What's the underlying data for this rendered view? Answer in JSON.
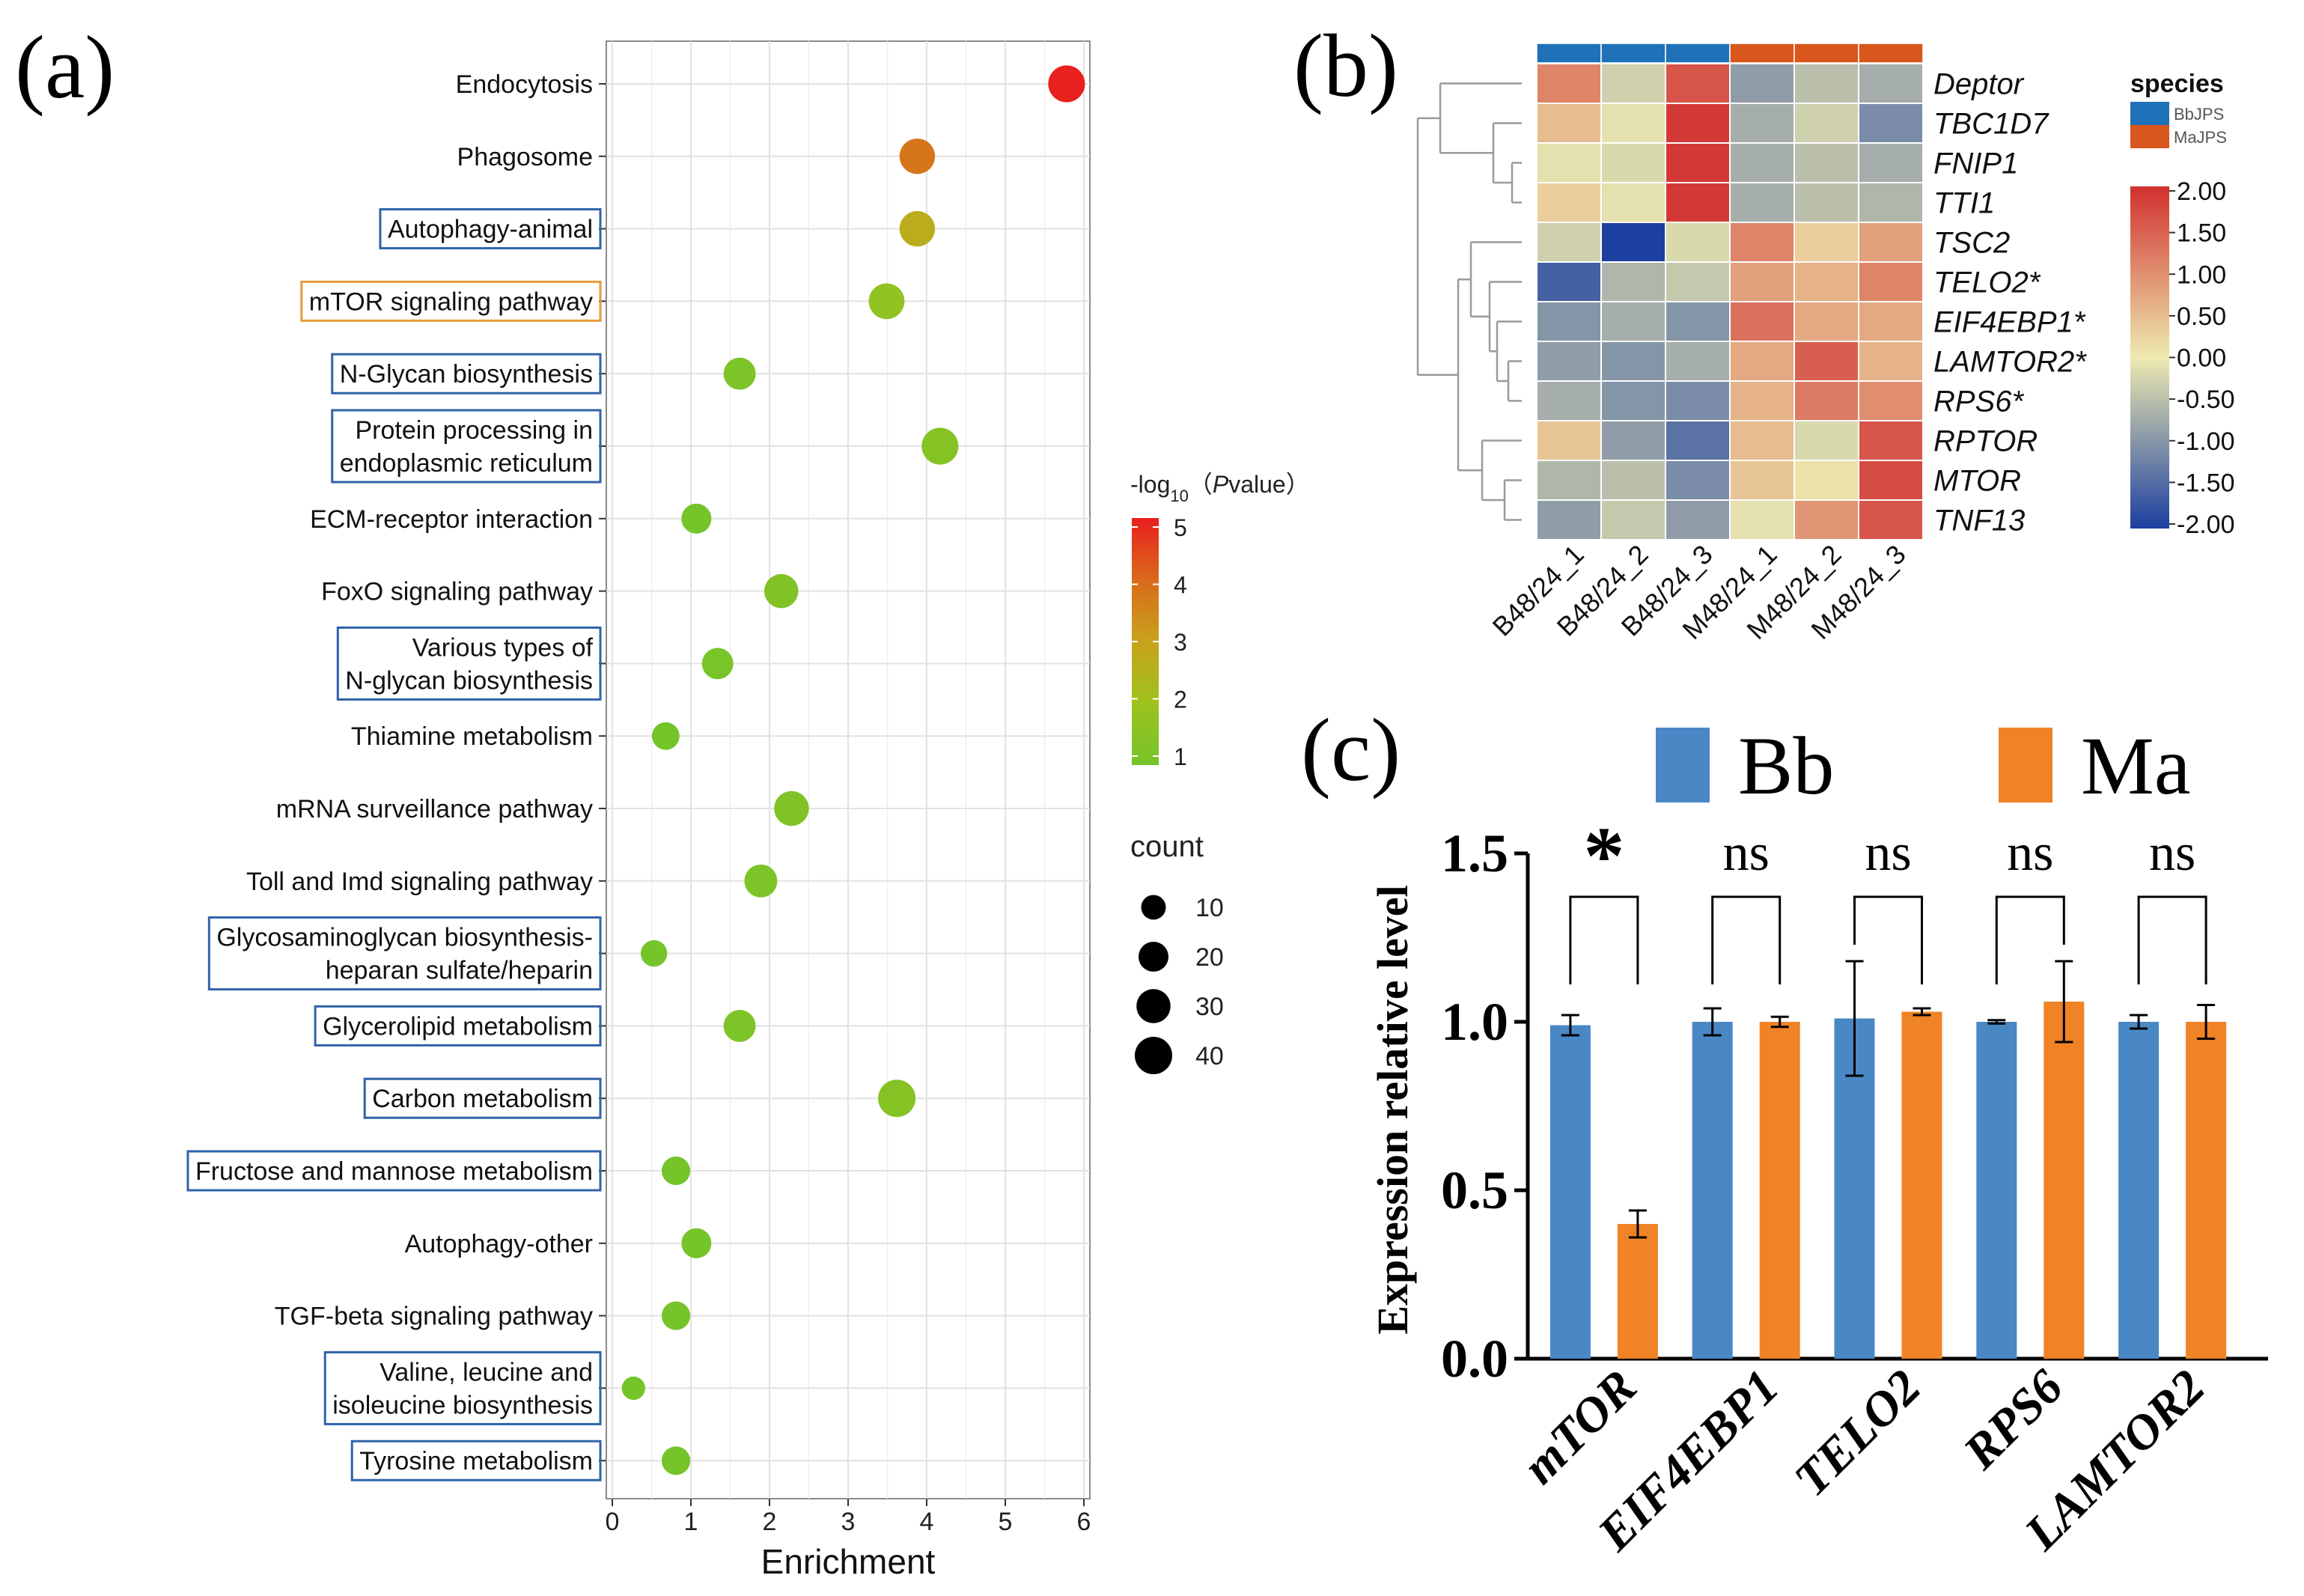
{
  "panel_labels": {
    "a": "(a)",
    "b": "(b)",
    "c": "(c)"
  },
  "chart_data": [
    {
      "type": "scatter",
      "panel": "a",
      "title": "",
      "xlabel": "Enrichment",
      "ylabel": "",
      "xlim": [
        0,
        6
      ],
      "xticks": [
        "0",
        "1",
        "2",
        "3",
        "4",
        "5",
        "6"
      ],
      "grid": true,
      "categories": [
        "Endocytosis",
        "Phagosome",
        "Autophagy-animal",
        "mTOR signaling pathway",
        "N-Glycan biosynthesis",
        "Protein processing in|endoplasmic reticulum",
        "ECM-receptor interaction",
        "FoxO signaling pathway",
        "Various types of|N-glycan biosynthesis",
        "Thiamine metabolism",
        "mRNA surveillance pathway",
        "Toll and Imd signaling pathway",
        "Glycosaminoglycan biosynthesis-|heparan sulfate/heparin",
        "Glycerolipid metabolism",
        "Carbon metabolism",
        "Fructose and mannose metabolism",
        "Autophagy-other",
        "TGF-beta signaling pathway",
        "Valine, leucine and|isoleucine biosynthesis",
        "Tyrosine metabolism"
      ],
      "boxed": [
        "none",
        "none",
        "blue",
        "orange",
        "blue",
        "blue",
        "none",
        "none",
        "blue",
        "none",
        "none",
        "none",
        "blue",
        "blue",
        "blue",
        "blue",
        "none",
        "none",
        "blue",
        "blue"
      ],
      "enrichment": [
        5.78,
        3.88,
        3.88,
        3.49,
        1.62,
        4.17,
        1.07,
        2.15,
        1.34,
        0.68,
        2.28,
        1.89,
        0.53,
        1.62,
        3.62,
        0.81,
        1.07,
        0.81,
        0.27,
        0.81
      ],
      "neg_log10_p": [
        5.0,
        3.8,
        2.7,
        1.7,
        1.2,
        1.4,
        1.0,
        1.3,
        1.1,
        1.0,
        1.3,
        1.2,
        1.0,
        1.2,
        1.4,
        1.0,
        1.0,
        1.0,
        1.0,
        1.0
      ],
      "count": [
        38,
        34,
        34,
        35,
        25,
        38,
        20,
        30,
        23,
        15,
        32,
        27,
        13,
        25,
        40,
        17,
        20,
        17,
        8,
        17
      ],
      "colorbar": {
        "title_prefix": "-log",
        "title_sub": "10",
        "title_suffix": "（",
        "title_p": "P",
        "title_end": "value）",
        "range": [
          1,
          5
        ],
        "ticks": [
          "5",
          "4",
          "3",
          "2",
          "1"
        ],
        "colors": [
          "#e8201e",
          "#d96a1a",
          "#c8a21c",
          "#9ec21e",
          "#74c42a"
        ]
      },
      "size_legend": {
        "title": "count",
        "values": [
          10,
          20,
          30,
          40
        ],
        "labels": [
          "10",
          "20",
          "30",
          "40"
        ]
      }
    },
    {
      "type": "heatmap",
      "panel": "b",
      "rows": [
        "Deptor",
        "TBC1D7",
        "FNIP1",
        "TTI1",
        "TSC2",
        "TELO2*",
        "EIF4EBP1*",
        "LAMTOR2*",
        "RPS6*",
        "RPTOR",
        "MTOR",
        "TNF13"
      ],
      "columns": [
        "B48/24_1",
        "B48/24_2",
        "B48/24_3",
        "M48/24_1",
        "M48/24_2",
        "M48/24_3"
      ],
      "column_species": [
        "BbJPS",
        "BbJPS",
        "BbJPS",
        "MaJPS",
        "MaJPS",
        "MaJPS"
      ],
      "values": [
        [
          1.1,
          -0.3,
          1.6,
          -0.9,
          -0.5,
          -0.7
        ],
        [
          0.5,
          -0.1,
          1.9,
          -0.7,
          -0.3,
          -1.1
        ],
        [
          -0.1,
          -0.2,
          1.9,
          -0.7,
          -0.5,
          -0.7
        ],
        [
          0.3,
          -0.1,
          1.9,
          -0.7,
          -0.5,
          -0.6
        ],
        [
          -0.3,
          -2.0,
          -0.2,
          1.1,
          0.3,
          0.8
        ],
        [
          -1.6,
          -0.6,
          -0.4,
          0.8,
          0.6,
          1.1
        ],
        [
          -1.0,
          -0.7,
          -1.0,
          1.3,
          0.7,
          0.7
        ],
        [
          -0.9,
          -1.0,
          -0.7,
          0.7,
          1.5,
          0.6
        ],
        [
          -0.7,
          -1.0,
          -1.1,
          0.6,
          1.2,
          1.0
        ],
        [
          0.4,
          -0.9,
          -1.4,
          0.5,
          -0.2,
          1.6
        ],
        [
          -0.6,
          -0.5,
          -1.1,
          0.4,
          0.1,
          1.7
        ],
        [
          -0.9,
          -0.4,
          -0.9,
          -0.1,
          0.9,
          1.6
        ]
      ],
      "legend": {
        "title": "species",
        "items": [
          {
            "label": "BbJPS",
            "color": "#1f72b8"
          },
          {
            "label": "MaJPS",
            "color": "#d9561c"
          }
        ]
      },
      "colorbar": {
        "range": [
          -2,
          2
        ],
        "ticks": [
          "2.00",
          "1.50",
          "1.00",
          "0.50",
          "0.00",
          "-0.50",
          "-1.00",
          "-1.50",
          "-2.00"
        ],
        "colors": [
          "#d1302f",
          "#eeeab0",
          "#1c3fa0"
        ]
      }
    },
    {
      "type": "bar",
      "panel": "c",
      "categories": [
        "mTOR",
        "EIF4EBP1",
        "TELO2",
        "RPS6",
        "LAMTOR2"
      ],
      "series": [
        {
          "name": "Bb",
          "values": [
            0.99,
            1.0,
            1.01,
            1.0,
            1.0
          ],
          "errors": [
            0.03,
            0.04,
            0.17,
            0.005,
            0.02
          ],
          "color": "#4a87c5"
        },
        {
          "name": "Ma",
          "values": [
            0.4,
            1.0,
            1.03,
            1.06,
            1.0
          ],
          "errors": [
            0.04,
            0.015,
            0.01,
            0.12,
            0.05
          ],
          "color": "#f08325"
        }
      ],
      "significance": [
        "*",
        "ns",
        "ns",
        "ns",
        "ns"
      ],
      "ylabel": "Expression relative level",
      "ylim": [
        0,
        1.5
      ],
      "yticks": [
        "0.0",
        "0.5",
        "1.0",
        "1.5"
      ],
      "legend": {
        "items": [
          {
            "label": "Bb",
            "color": "#4a87c5"
          },
          {
            "label": "Ma",
            "color": "#f08325"
          }
        ],
        "placement": "top"
      }
    }
  ]
}
